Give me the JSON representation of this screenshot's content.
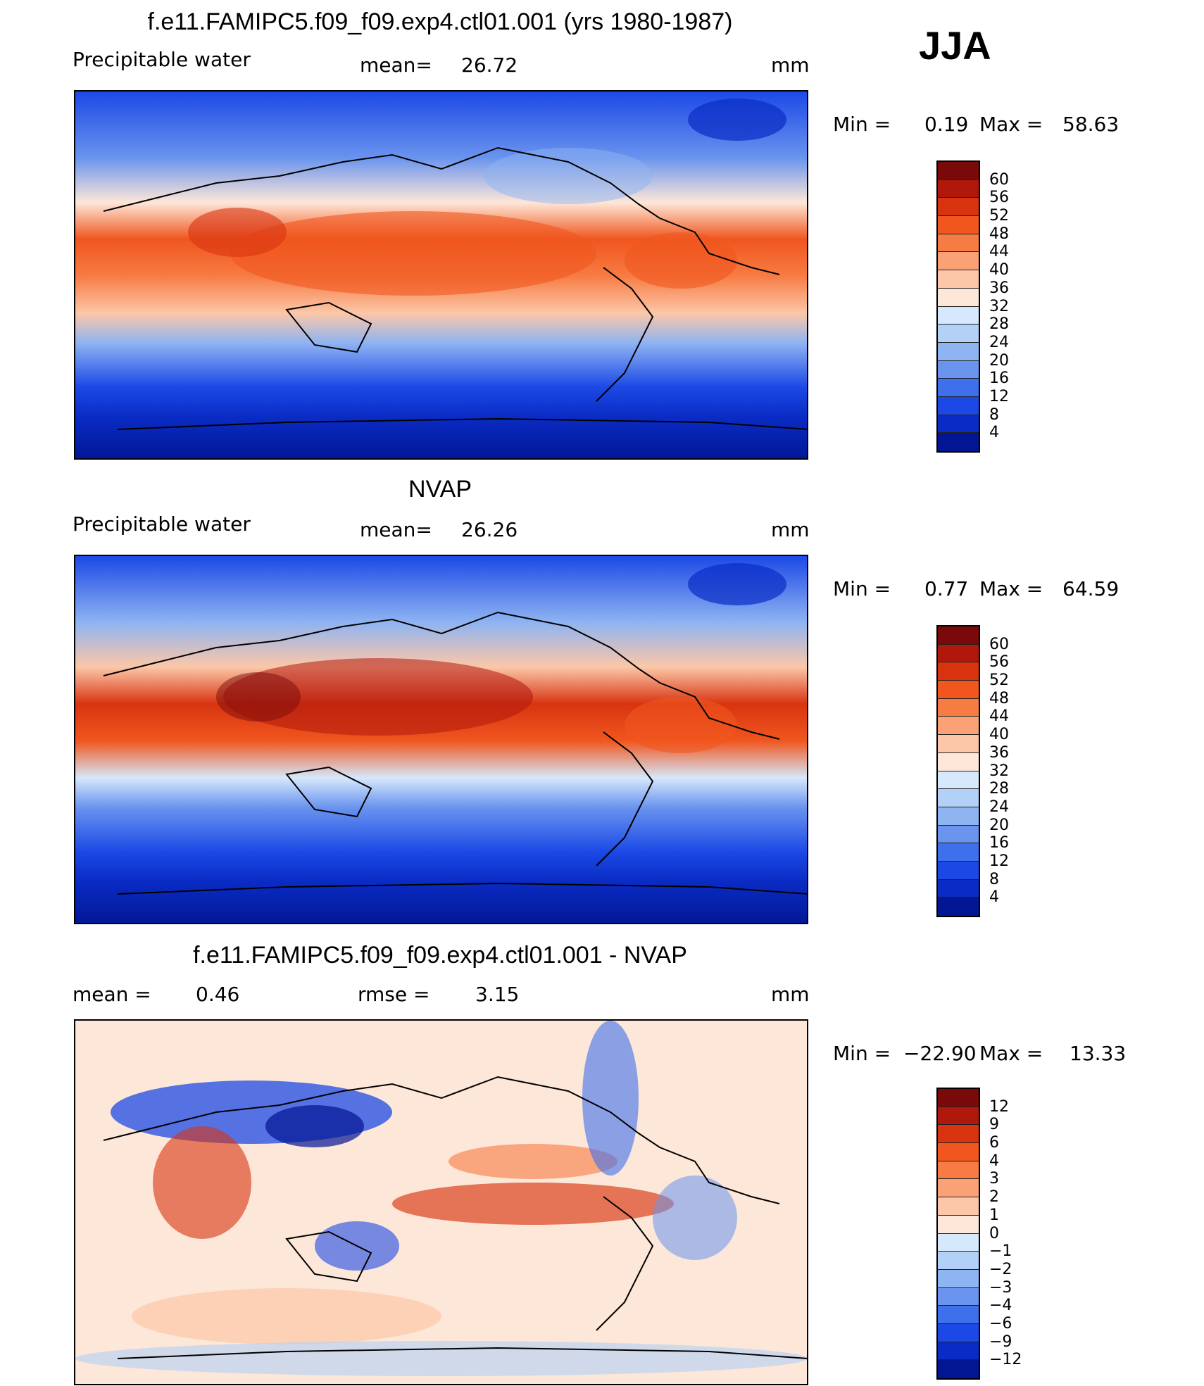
{
  "season": "JJA",
  "chart_data": [
    {
      "type": "heatmap",
      "title": "f.e11.FAMIPC5.f09_f09.exp4.ctl01.001 (yrs 1980-1987)",
      "variable": "Precipitable water",
      "stat_label": "mean=",
      "stat_value": "26.72",
      "units": "mm",
      "min_label": "Min =",
      "min_value": "0.19",
      "max_label": "Max =",
      "max_value": "58.63",
      "levels": [
        "60",
        "56",
        "52",
        "48",
        "44",
        "40",
        "36",
        "32",
        "28",
        "24",
        "20",
        "16",
        "12",
        "8",
        "4"
      ],
      "colors": [
        "#7a0a0a",
        "#b0180c",
        "#d83410",
        "#f0561e",
        "#f77c44",
        "#faa176",
        "#fcc7a8",
        "#fde7d8",
        "#d6e8fb",
        "#b3d0f7",
        "#8fb4f2",
        "#6a94ee",
        "#3f70ec",
        "#1c49e6",
        "#0a2cc4",
        "#021694"
      ]
    },
    {
      "type": "heatmap",
      "title": "NVAP",
      "variable": "Precipitable water",
      "stat_label": "mean=",
      "stat_value": "26.26",
      "units": "mm",
      "min_label": "Min =",
      "min_value": "0.77",
      "max_label": "Max =",
      "max_value": "64.59",
      "levels": [
        "60",
        "56",
        "52",
        "48",
        "44",
        "40",
        "36",
        "32",
        "28",
        "24",
        "20",
        "16",
        "12",
        "8",
        "4"
      ],
      "colors": [
        "#7a0a0a",
        "#b0180c",
        "#d83410",
        "#f0561e",
        "#f77c44",
        "#faa176",
        "#fcc7a8",
        "#fde7d8",
        "#d6e8fb",
        "#b3d0f7",
        "#8fb4f2",
        "#6a94ee",
        "#3f70ec",
        "#1c49e6",
        "#0a2cc4",
        "#021694"
      ]
    },
    {
      "type": "heatmap",
      "title": "f.e11.FAMIPC5.f09_f09.exp4.ctl01.001 - NVAP",
      "stat_label": "mean =",
      "stat_value": "0.46",
      "stat2_label": "rmse =",
      "stat2_value": "3.15",
      "units": "mm",
      "min_label": "Min =",
      "min_value": "−22.90",
      "max_label": "Max =",
      "max_value": "13.33",
      "levels": [
        "12",
        "9",
        "6",
        "4",
        "3",
        "2",
        "1",
        "0",
        "−1",
        "−2",
        "−3",
        "−4",
        "−6",
        "−9",
        "−12"
      ],
      "colors": [
        "#7a0a0a",
        "#b0180c",
        "#d83410",
        "#f0561e",
        "#f77c44",
        "#faa176",
        "#fcc7a8",
        "#fde7d8",
        "#d6e8fb",
        "#b3d0f7",
        "#8fb4f2",
        "#6a94ee",
        "#3f70ec",
        "#1c49e6",
        "#0a2cc4",
        "#021694"
      ]
    }
  ]
}
